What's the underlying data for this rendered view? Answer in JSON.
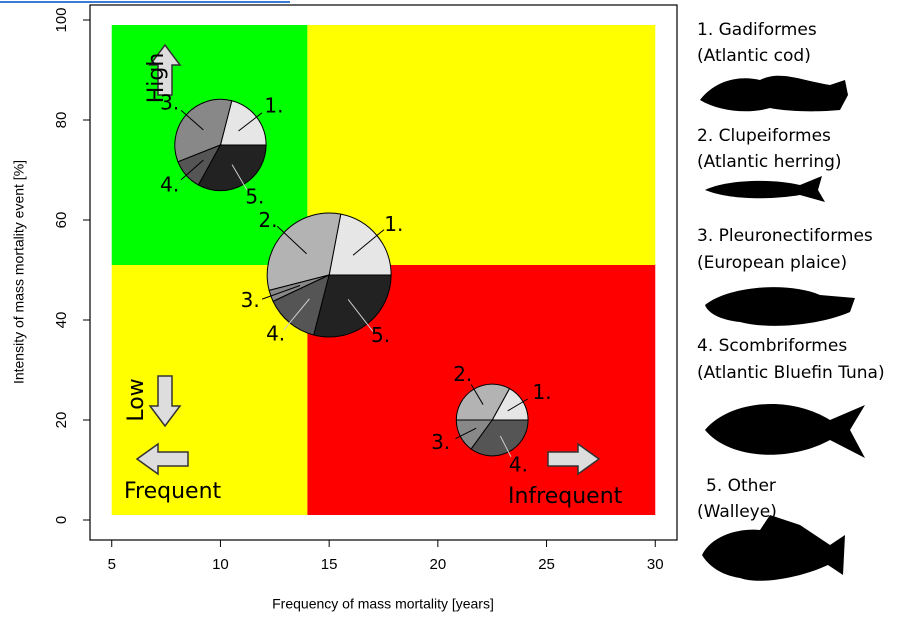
{
  "chart_data": {
    "type": "pie-scatter",
    "x_label": "Frequency of mass mortality [years]",
    "y_label": "Intensity of mass mortality event [%]",
    "xlim": [
      4,
      31
    ],
    "ylim": [
      -4,
      103
    ],
    "xticks": [
      5,
      10,
      15,
      20,
      25,
      30
    ],
    "yticks": [
      0,
      20,
      40,
      60,
      80,
      100
    ],
    "regions": [
      {
        "x": [
          5,
          14
        ],
        "y": [
          51,
          99
        ],
        "color": "#00ff00"
      },
      {
        "x": [
          14,
          30
        ],
        "y": [
          51,
          99
        ],
        "color": "#ffff00"
      },
      {
        "x": [
          5,
          14
        ],
        "y": [
          1,
          51
        ],
        "color": "#ffff00"
      },
      {
        "x": [
          14,
          30
        ],
        "y": [
          1,
          51
        ],
        "color": "#ff0000"
      }
    ],
    "pies": [
      {
        "x": 10,
        "y": 75,
        "size": 2.1,
        "labels": [
          "1.",
          "3.",
          "4.",
          "5."
        ],
        "values": [
          21,
          35,
          11,
          33
        ],
        "colors": [
          "#e6e6e6",
          "#888888",
          "#555555",
          "#222222"
        ]
      },
      {
        "x": 15,
        "y": 49,
        "size": 2.85,
        "labels": [
          "1.",
          "2.",
          "3.",
          "4.",
          "5."
        ],
        "values": [
          22,
          32,
          3,
          14,
          29
        ],
        "colors": [
          "#e6e6e6",
          "#b3b3b3",
          "#888888",
          "#555555",
          "#222222"
        ]
      },
      {
        "x": 22.5,
        "y": 20,
        "size": 1.65,
        "labels": [
          "1.",
          "2.",
          "3.",
          "4."
        ],
        "values": [
          17,
          33,
          15,
          35
        ],
        "colors": [
          "#e6e6e6",
          "#b3b3b3",
          "#888888",
          "#555555"
        ]
      }
    ],
    "annotations": [
      "High",
      "Low",
      "Frequent",
      "Infrequent"
    ],
    "legend": [
      {
        "name": "1. Gadiformes",
        "example": "(Atlantic cod)"
      },
      {
        "name": "2. Clupeiformes",
        "example": "(Atlantic herring)"
      },
      {
        "name": "3. Pleuronectiformes",
        "example": "(European plaice)"
      },
      {
        "name": "4. Scombriformes",
        "example": "(Atlantic Bluefin Tuna)"
      },
      {
        "name": "5. Other",
        "example": "(Walleye)"
      }
    ]
  }
}
